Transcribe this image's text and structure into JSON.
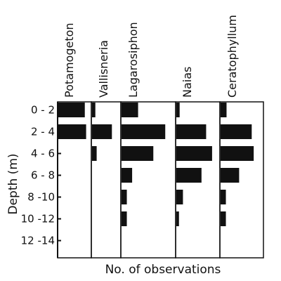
{
  "chart_data": {
    "type": "bar",
    "orientation": "horizontal",
    "ylabel": "Depth (m)",
    "xlabel": "No. of observations",
    "categories": [
      "0 - 2",
      "2 - 4",
      "4 - 6",
      "6 - 8",
      "8 -10",
      "10 -12",
      "12 -14"
    ],
    "series": [
      {
        "name": "Potamogeton",
        "values": [
          40,
          42,
          0,
          0,
          0,
          0,
          0
        ]
      },
      {
        "name": "Vallisneria",
        "values": [
          5,
          30,
          7,
          0,
          0,
          0,
          0
        ]
      },
      {
        "name": "Lagarosiphon",
        "values": [
          25,
          66,
          48,
          16,
          8,
          8,
          0
        ]
      },
      {
        "name": "Naias",
        "values": [
          5,
          45,
          54,
          38,
          10,
          4,
          0
        ]
      },
      {
        "name": "Ceratophyllum",
        "values": [
          9,
          47,
          50,
          28,
          8,
          8,
          0
        ]
      }
    ],
    "bar_color": "#111111",
    "grid": false,
    "legend": "none"
  }
}
